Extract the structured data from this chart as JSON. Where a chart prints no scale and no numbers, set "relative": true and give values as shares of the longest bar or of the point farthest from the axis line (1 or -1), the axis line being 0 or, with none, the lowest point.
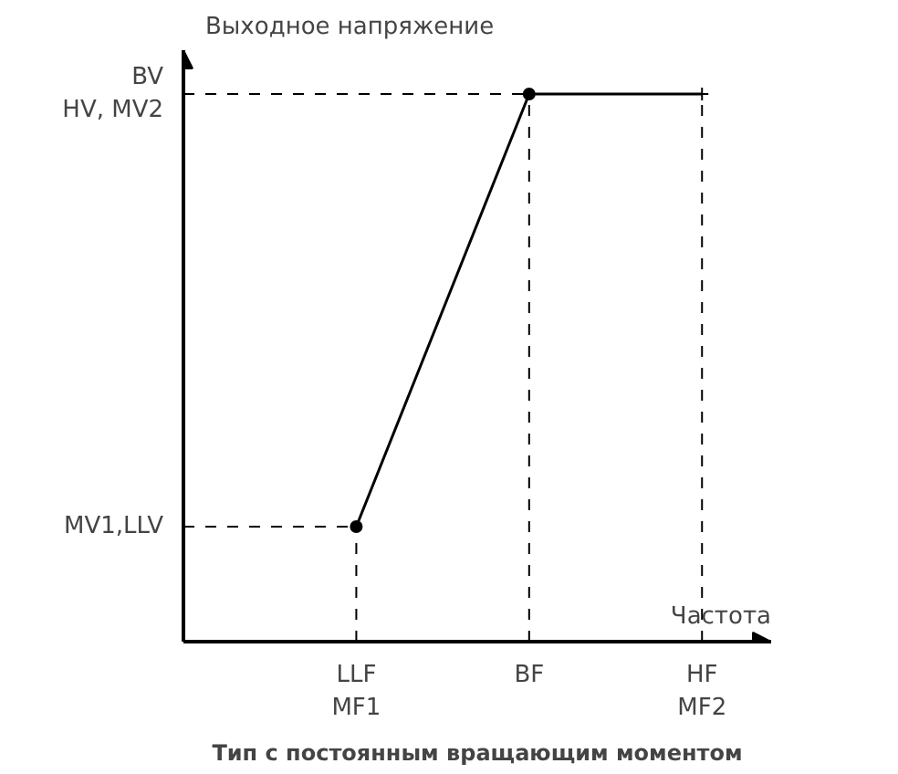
{
  "chart_data": {
    "type": "line",
    "title": "Тип с постоянным вращающим моментом",
    "xlabel": "Частота",
    "ylabel": "Выходное напряжение",
    "relative": true,
    "categories": [
      "LLF\nMF1",
      "BF",
      "HF\nMF2"
    ],
    "series": [
      {
        "color": "#000000",
        "values": [
          0.21,
          1.0,
          1.0
        ]
      }
    ],
    "ref_lines": [
      {
        "axis": "y",
        "value": 0.21,
        "label": "MV1,LLV",
        "line_style": "dashed",
        "color": "#000000"
      },
      {
        "axis": "y",
        "value": 1.0,
        "label": "BV\nHV, MV2",
        "line_style": "dashed",
        "color": "#000000"
      },
      {
        "axis": "x",
        "value": "LLF\nMF1",
        "line_style": "dashed",
        "color": "#000000"
      },
      {
        "axis": "x",
        "value": "BF",
        "line_style": "dashed",
        "color": "#000000"
      },
      {
        "axis": "x",
        "value": "HF\nMF2",
        "line_style": "dashed",
        "color": "#000000"
      }
    ],
    "marker": "circle",
    "line_style": "solid"
  }
}
